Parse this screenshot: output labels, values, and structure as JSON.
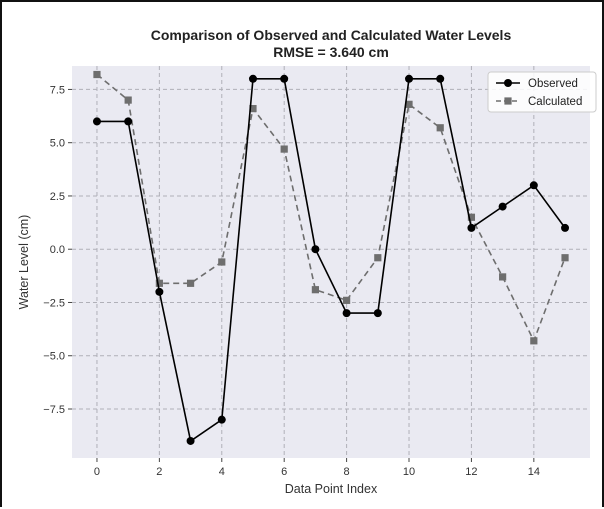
{
  "chart_data": {
    "type": "line",
    "title": "Comparison of Observed and Calculated Water Levels",
    "subtitle": "RMSE = 3.640 cm",
    "xlabel": "Data Point Index",
    "ylabel": "Water Level (cm)",
    "xlim": [
      -0.8,
      15.8
    ],
    "ylim": [
      -9.8,
      8.6
    ],
    "xticks": [
      0,
      2,
      4,
      6,
      8,
      10,
      12,
      14
    ],
    "xtick_labels": [
      "0",
      "2",
      "4",
      "6",
      "8",
      "10",
      "12",
      "14"
    ],
    "yticks": [
      7.5,
      5.0,
      2.5,
      0.0,
      -2.5,
      -5.0,
      -7.5
    ],
    "ytick_labels": [
      "7.5",
      "5.0",
      "2.5",
      "0.0",
      "−2.5",
      "−5.0",
      "−7.5"
    ],
    "grid": true,
    "legend_position": "top-right",
    "x": [
      0,
      1,
      2,
      3,
      4,
      5,
      6,
      7,
      8,
      9,
      10,
      11,
      12,
      13,
      14,
      15
    ],
    "series": [
      {
        "name": "Observed",
        "color": "#000000",
        "line_style": "solid",
        "marker": "circle",
        "values": [
          6,
          6,
          -2,
          -9,
          -8,
          8,
          8,
          0,
          -3,
          -3,
          8,
          8,
          1,
          2,
          3,
          1
        ]
      },
      {
        "name": "Calculated",
        "color": "#6e6e6e",
        "line_style": "dashed",
        "marker": "square",
        "values": [
          8.2,
          7.0,
          -1.6,
          -1.6,
          -0.6,
          6.6,
          4.7,
          -1.9,
          -2.4,
          -0.4,
          6.8,
          5.7,
          1.5,
          -1.3,
          -4.3,
          -0.4
        ]
      }
    ]
  }
}
